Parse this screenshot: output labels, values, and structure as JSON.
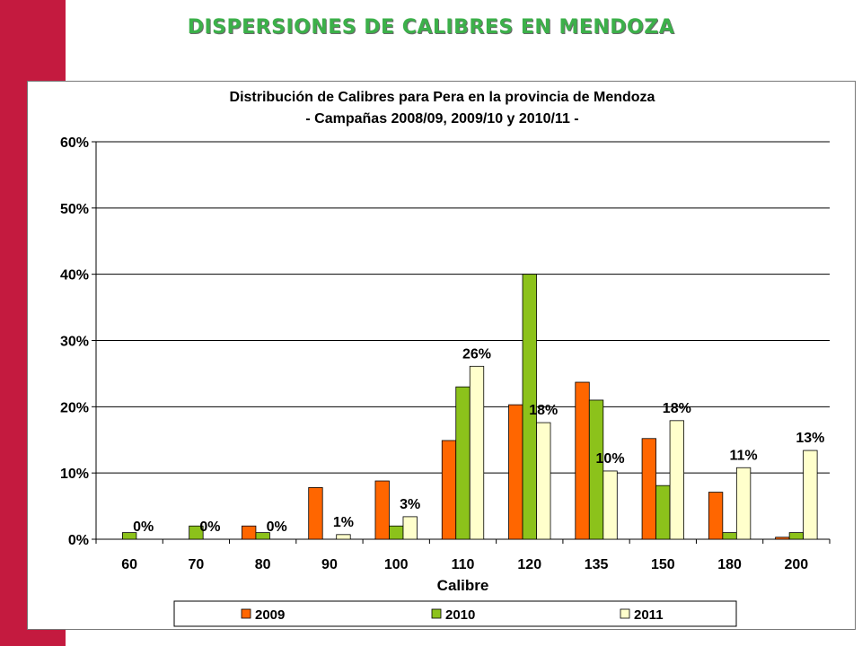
{
  "page_title": "DISPERSIONES DE CALIBRES EN MENDOZA",
  "colors": {
    "side_bar": "#c41a3f",
    "title": "#3cb04a",
    "s2009": "#ff6600",
    "s2010": "#8cc21b",
    "s2011": "#ffffcc"
  },
  "chart_data": {
    "type": "bar",
    "title": "Distribución de Calibres para Pera en la provincia de Mendoza",
    "subtitle": "- Campañas 2008/09, 2009/10 y 2010/11 -",
    "xlabel": "Calibre",
    "ylabel": "",
    "ylim": [
      0,
      0.6
    ],
    "yticks": [
      "0%",
      "10%",
      "20%",
      "30%",
      "40%",
      "50%",
      "60%"
    ],
    "categories": [
      "60",
      "70",
      "80",
      "90",
      "100",
      "110",
      "120",
      "135",
      "150",
      "180",
      "200"
    ],
    "series": [
      {
        "name": "2009",
        "color": "#ff6600",
        "values": [
          0.0,
          0.0,
          0.02,
          0.078,
          0.088,
          0.149,
          0.203,
          0.237,
          0.152,
          0.071,
          0.003
        ]
      },
      {
        "name": "2010",
        "color": "#8cc21b",
        "values": [
          0.01,
          0.02,
          0.01,
          0.0,
          0.02,
          0.23,
          0.4,
          0.21,
          0.081,
          0.01,
          0.01
        ]
      },
      {
        "name": "2011",
        "color": "#ffffcc",
        "values": [
          0.0,
          0.0,
          0.0,
          0.007,
          0.034,
          0.261,
          0.176,
          0.103,
          0.179,
          0.108,
          0.134
        ]
      }
    ],
    "data_labels": [
      "0%",
      "0%",
      "0%",
      "1%",
      "3%",
      "26%",
      "18%",
      "10%",
      "18%",
      "11%",
      "13%"
    ],
    "grid": true,
    "legend": "bottom"
  }
}
